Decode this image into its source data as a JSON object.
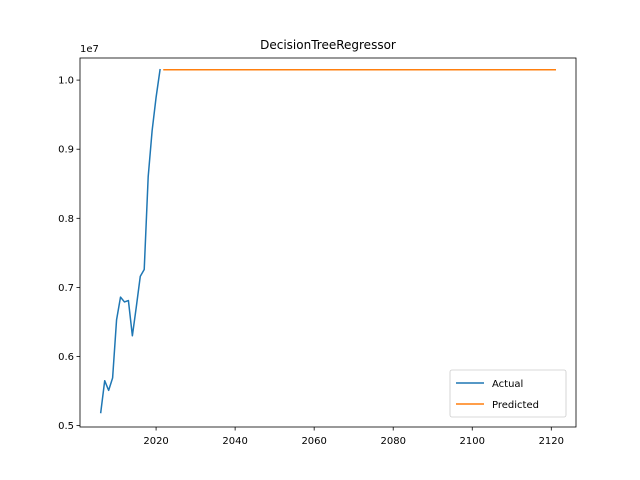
{
  "chart_data": {
    "type": "line",
    "title": "DecisionTreeRegressor",
    "xlabel": "",
    "ylabel": "",
    "y_offset_label": "1e7",
    "xlim": [
      2000.75,
      2126.25
    ],
    "ylim": [
      4.98,
      10.32
    ],
    "x_ticks": [
      2020,
      2040,
      2060,
      2080,
      2100,
      2120
    ],
    "y_ticks": [
      0.5,
      0.6,
      0.7,
      0.8,
      0.9,
      1.0
    ],
    "y_tick_labels": [
      "0.5",
      "0.6",
      "0.7",
      "0.8",
      "0.9",
      "1.0"
    ],
    "y_scale_note": "y values in units of 1e7",
    "legend_position": "lower right",
    "series": [
      {
        "name": "Actual",
        "color": "#1f77b4",
        "x": [
          2006,
          2007,
          2008,
          2009,
          2010,
          2011,
          2012,
          2013,
          2014,
          2015,
          2016,
          2017,
          2018,
          2019,
          2020,
          2021
        ],
        "y": [
          5.19,
          5.65,
          5.51,
          5.69,
          6.53,
          6.86,
          6.79,
          6.81,
          6.3,
          6.72,
          7.16,
          7.26,
          8.6,
          9.27,
          9.75,
          10.15
        ]
      },
      {
        "name": "Predicted",
        "color": "#ff7f0e",
        "x": [
          2022,
          2121
        ],
        "y": [
          10.15,
          10.15
        ]
      }
    ]
  }
}
